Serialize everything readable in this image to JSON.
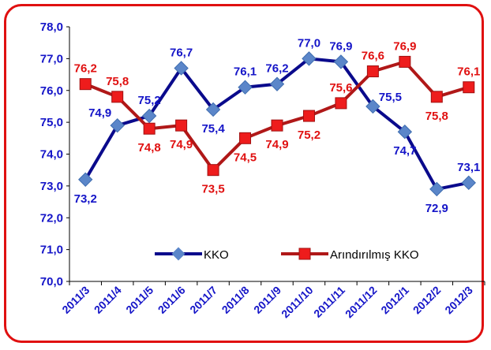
{
  "chart_data": {
    "type": "line",
    "categories": [
      "2011/3",
      "2011/4",
      "2011/5",
      "2011/6",
      "2011/7",
      "2011/8",
      "2011/9",
      "2011/10",
      "2011/11",
      "2011/12",
      "2012/1",
      "2012/2",
      "2012/3"
    ],
    "ylim": [
      70,
      78
    ],
    "yticks": [
      "70,0",
      "71,0",
      "72,0",
      "73,0",
      "74,0",
      "75,0",
      "76,0",
      "77,0",
      "78,0"
    ],
    "grid": false,
    "legend_position": "bottom-right inside plot",
    "series": [
      {
        "name": "KKO",
        "color": "#0a0a8c",
        "marker": "diamond",
        "marker_color": "#5b86c9",
        "label_color": "#1515c8",
        "values": [
          73.2,
          74.9,
          75.2,
          76.7,
          75.4,
          76.1,
          76.2,
          77.0,
          76.9,
          75.5,
          74.7,
          72.9,
          73.1
        ],
        "labels": [
          "73,2",
          "74,9",
          "75,2",
          "76,7",
          "75,4",
          "76,1",
          "76,2",
          "77,0",
          "76,9",
          "75,5",
          "74,7",
          "72,9",
          "73,1"
        ]
      },
      {
        "name": "Arındırılmış KKO",
        "color": "#b01818",
        "marker": "square",
        "marker_color": "#ee1c1c",
        "label_color": "#e01010",
        "values": [
          76.2,
          75.8,
          74.8,
          74.9,
          73.5,
          74.5,
          74.9,
          75.2,
          75.6,
          76.6,
          76.9,
          75.8,
          76.1
        ],
        "labels": [
          "76,2",
          "75,8",
          "74,8",
          "74,9",
          "73,5",
          "74,5",
          "74,9",
          "75,2",
          "75,6",
          "76,6",
          "76,9",
          "75,8",
          "76,1"
        ]
      }
    ]
  }
}
